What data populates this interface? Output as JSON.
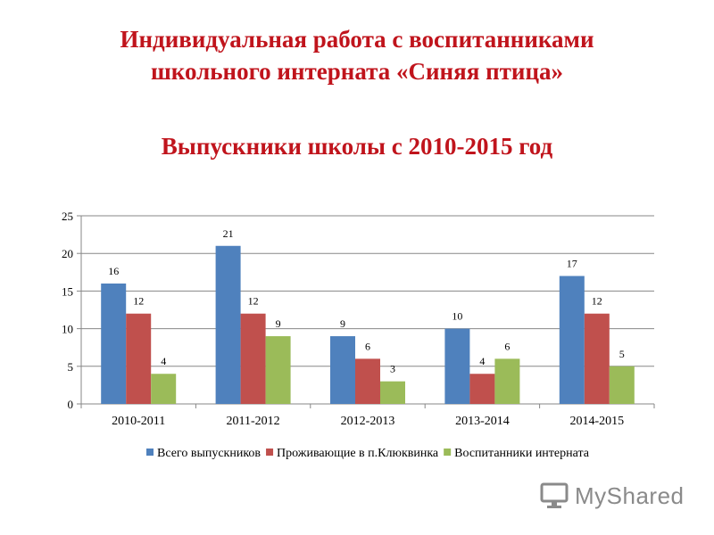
{
  "slide": {
    "title_line1": "Индивидуальная работа с воспитанниками",
    "title_line2": "школьного интерната «Синяя птица»",
    "subtitle": "Выпускники школы с 2010-2015 год",
    "watermark": "MyShared"
  },
  "chart_data": {
    "type": "bar",
    "categories": [
      "2010-2011",
      "2011-2012",
      "2012-2013",
      "2013-2014",
      "2014-2015"
    ],
    "series": [
      {
        "name": "Всего выпускников",
        "values": [
          16,
          21,
          9,
          10,
          17
        ],
        "color": "#4f81bd"
      },
      {
        "name": "Проживающие в п.Клюквинка",
        "values": [
          12,
          12,
          6,
          4,
          12
        ],
        "color": "#c0504d"
      },
      {
        "name": "Воспитанники интерната",
        "values": [
          4,
          9,
          3,
          6,
          5
        ],
        "color": "#9bbb59"
      }
    ],
    "ylim": [
      0,
      25
    ],
    "yticks": [
      0,
      5,
      10,
      15,
      20,
      25
    ],
    "grid": true,
    "legend": "bottom",
    "data_labels": true
  }
}
